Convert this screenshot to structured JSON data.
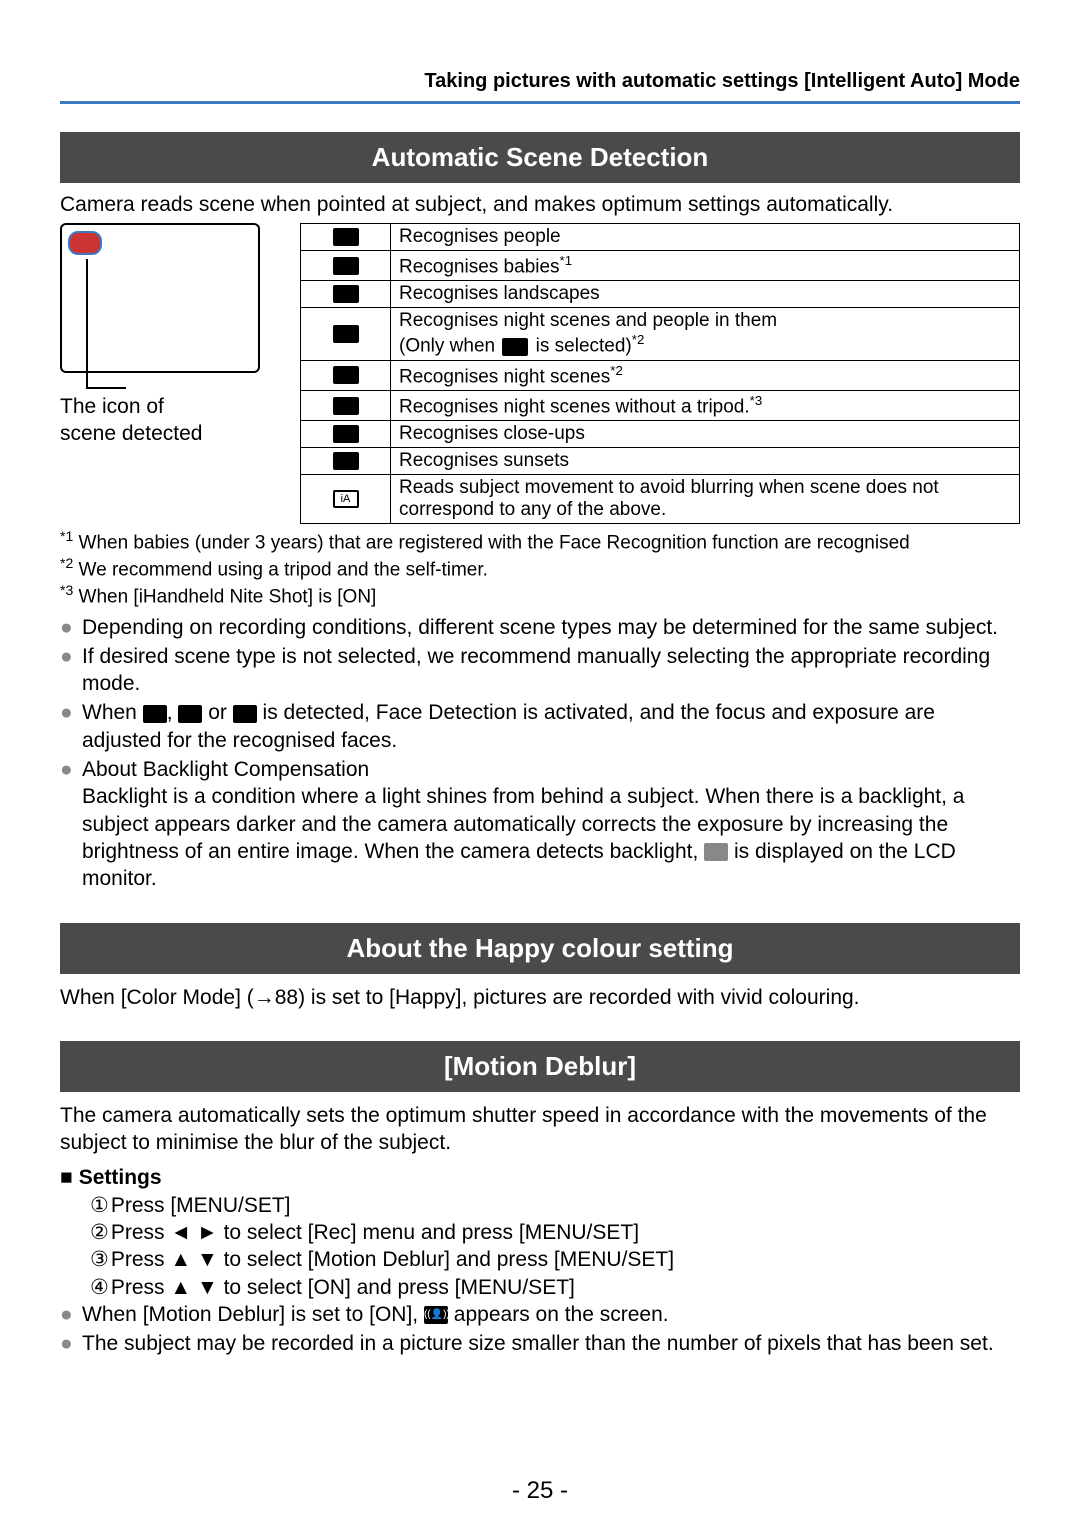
{
  "header": {
    "title": "Taking pictures with automatic settings  [Intelligent Auto] Mode"
  },
  "section1": {
    "heading": "Automatic Scene Detection",
    "intro": "Camera reads scene when pointed at subject, and makes optimum settings automatically.",
    "caption_line1": "The icon of",
    "caption_line2": "scene detected",
    "rows": [
      {
        "desc": "Recognises people"
      },
      {
        "desc_a": "Recognises babies",
        "sup": "1"
      },
      {
        "desc": "Recognises landscapes"
      },
      {
        "desc_a": "Recognises night scenes and people in them",
        "desc_b": "(Only when ",
        "desc_c": " is selected)",
        "sup": "2"
      },
      {
        "desc_a": "Recognises night scenes",
        "sup": "2"
      },
      {
        "desc_a": "Recognises night scenes without a tripod.",
        "sup": "3"
      },
      {
        "desc": "Recognises close-ups"
      },
      {
        "desc": "Recognises sunsets"
      },
      {
        "desc": "Reads subject movement to avoid blurring when scene does not correspond to any of the above."
      }
    ],
    "fn1": " When babies (under 3 years) that are registered with the Face Recognition function are recognised",
    "fn2": " We recommend using a tripod and the self-timer.",
    "fn3": " When [iHandheld Nite Shot] is [ON]",
    "bullets": {
      "b1": "Depending on recording conditions, different scene types may be determined for the same subject.",
      "b2": "If desired scene type is not selected, we recommend manually selecting the appropriate recording mode.",
      "b3_a": "When ",
      "b3_b": ", ",
      "b3_c": " or ",
      "b3_d": " is detected, Face Detection is activated, and the focus and exposure are adjusted for the recognised faces.",
      "b4_hdr": "About Backlight Compensation",
      "b4_a": "Backlight is a condition where a light shines from behind a subject. When there is a backlight, a subject appears darker and the camera automatically corrects the exposure by increasing the brightness of an entire image. When the camera detects backlight, ",
      "b4_b": " is displayed on the LCD monitor."
    }
  },
  "section2": {
    "heading": "About the Happy colour setting",
    "text": "When [Color Mode] (→88) is set to [Happy], pictures are recorded with vivid colouring."
  },
  "section3": {
    "heading": "[Motion Deblur]",
    "intro": "The camera automatically sets the optimum shutter speed in accordance with the movements of the subject to minimise the blur of the subject.",
    "settings_label": "Settings",
    "steps": {
      "s1": "Press [MENU/SET]",
      "s2": "Press ◄ ► to select [Rec] menu and press [MENU/SET]",
      "s3": "Press ▲ ▼ to select [Motion Deblur] and press [MENU/SET]",
      "s4": "Press ▲ ▼ to select [ON] and press [MENU/SET]"
    },
    "post_bullets": {
      "p1_a": "When [Motion Deblur] is set to [ON], ",
      "p1_b": " appears on the screen.",
      "p2": "The subject may be recorded in a picture size smaller than the number of pixels that has been set."
    }
  },
  "page_number": "- 25 -"
}
